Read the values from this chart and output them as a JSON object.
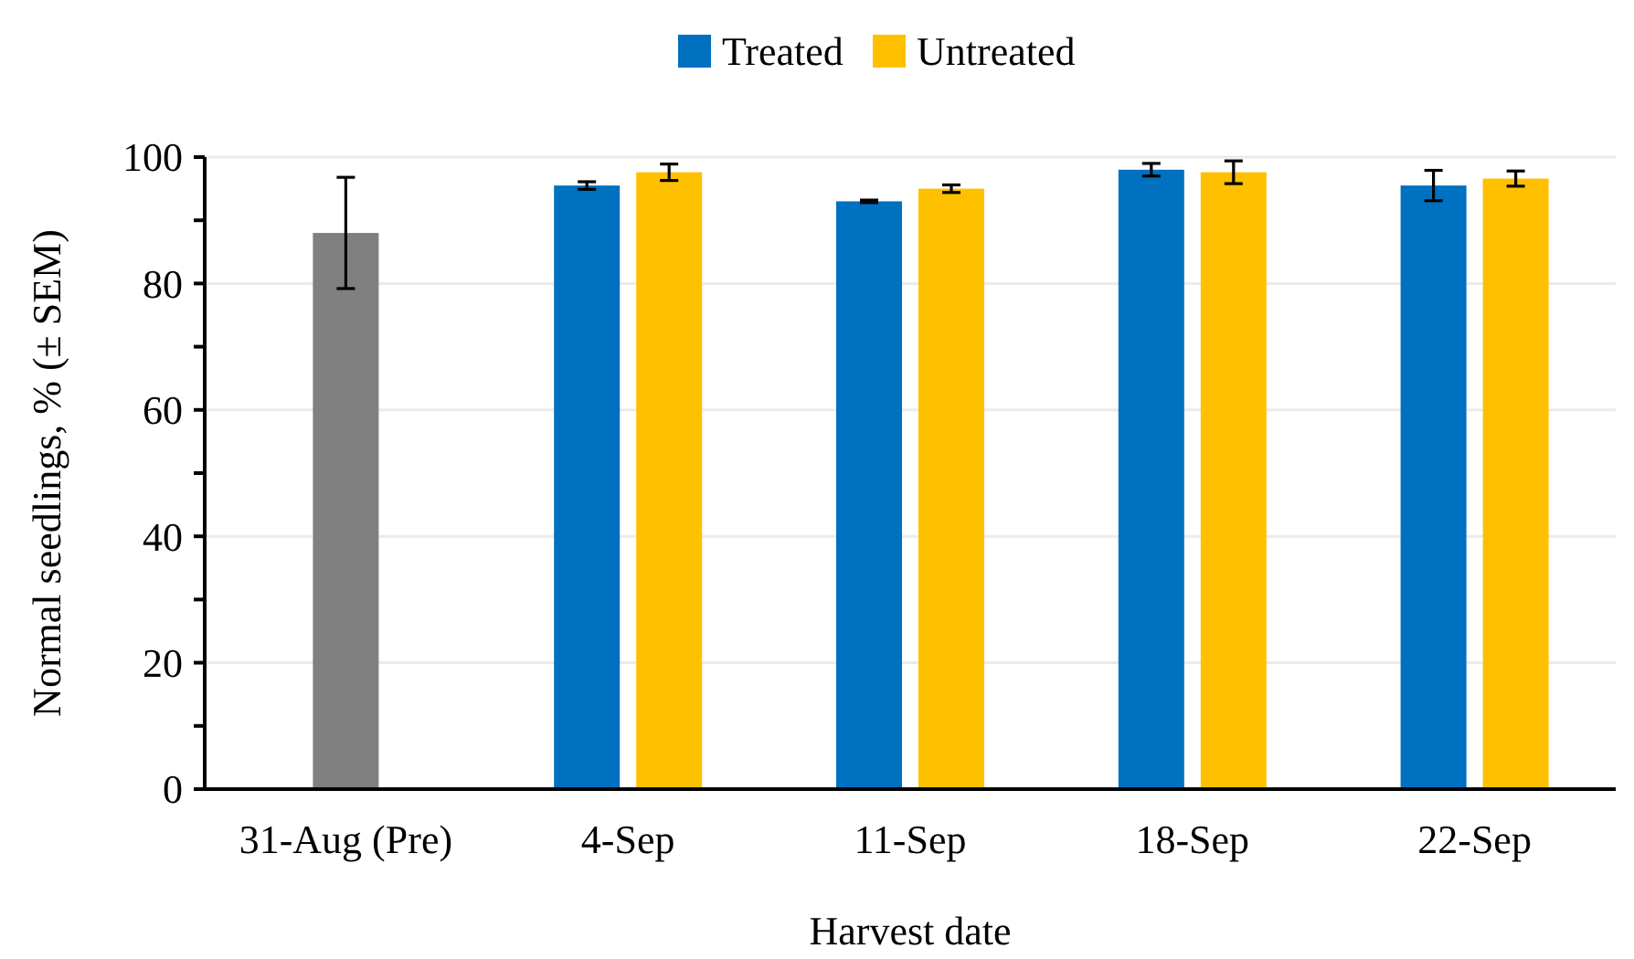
{
  "chart_data": {
    "type": "bar",
    "xlabel": "Harvest date",
    "ylabel": "Normal seedlings, % (± SEM)",
    "categories": [
      "31-Aug (Pre)",
      "4-Sep",
      "11-Sep",
      "18-Sep",
      "22-Sep"
    ],
    "series": [
      {
        "color": "#808080",
        "values": [
          88.0,
          null,
          null,
          null,
          null
        ],
        "errors": [
          8.8,
          null,
          null,
          null,
          null
        ]
      },
      {
        "name": "Treated",
        "color": "#0070c0",
        "values": [
          null,
          95.5,
          93.0,
          98.0,
          95.5
        ],
        "errors": [
          null,
          0.6,
          0.2,
          1.0,
          2.4
        ]
      },
      {
        "name": "Untreated",
        "color": "#ffc000",
        "values": [
          null,
          97.6,
          95.0,
          97.6,
          96.6
        ],
        "errors": [
          null,
          1.3,
          0.6,
          1.8,
          1.2
        ]
      }
    ],
    "ylim": [
      0,
      100
    ],
    "yticks": [
      0,
      {
        "value": 10,
        "label": null
      },
      20,
      {
        "value": 30,
        "label": null
      },
      40,
      {
        "value": 50,
        "label": null
      },
      60,
      {
        "value": 70,
        "label": null
      },
      80,
      {
        "value": 90,
        "label": null
      },
      100
    ],
    "grid": "y",
    "legend": "top"
  }
}
